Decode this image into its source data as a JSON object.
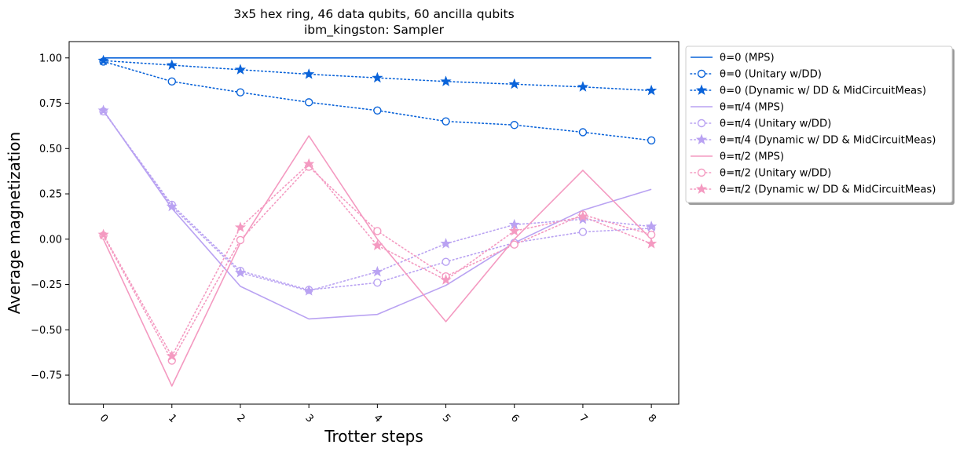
{
  "chart_data": {
    "type": "line",
    "title": [
      "3x5 hex ring, 46 data qubits, 60 ancilla qubits",
      "ibm_kingston: Sampler"
    ],
    "xlabel": "Trotter steps",
    "ylabel": "Average magnetization",
    "x": [
      0,
      1,
      2,
      3,
      4,
      5,
      6,
      7,
      8
    ],
    "x_tick_labels": [
      "0",
      "1",
      "2",
      "3",
      "4",
      "5",
      "6",
      "7",
      "8"
    ],
    "y_ticks": [
      -0.75,
      -0.5,
      -0.25,
      0.0,
      0.25,
      0.5,
      0.75,
      1.0
    ],
    "y_tick_labels": [
      "−0.75",
      "−0.50",
      "−0.25",
      "0.00",
      "0.25",
      "0.50",
      "0.75",
      "1.00"
    ],
    "xlim": [
      -0.5,
      8.4
    ],
    "ylim": [
      -0.91,
      1.09
    ],
    "grid": false,
    "legend_position": "outside-right-top",
    "series": [
      {
        "name": "θ=0 (MPS)",
        "color": "#0a63d9",
        "style": "solid",
        "marker": "none",
        "values": [
          1.0,
          1.0,
          1.0,
          1.0,
          1.0,
          1.0,
          1.0,
          1.0,
          1.0
        ]
      },
      {
        "name": "θ=0 (Unitary w/DD)",
        "color": "#0a63d9",
        "style": "dotted",
        "marker": "circle",
        "values": [
          0.98,
          0.87,
          0.81,
          0.755,
          0.71,
          0.65,
          0.63,
          0.59,
          0.545
        ]
      },
      {
        "name": "θ=0 (Dynamic w/ DD & MidCircuitMeas)",
        "color": "#0a63d9",
        "style": "dotted",
        "marker": "star",
        "values": [
          0.985,
          0.96,
          0.935,
          0.91,
          0.89,
          0.87,
          0.855,
          0.84,
          0.82
        ]
      },
      {
        "name": "θ=π/4 (MPS)",
        "color": "#b9a2f2",
        "style": "solid",
        "marker": "none",
        "values": [
          0.71,
          0.17,
          -0.26,
          -0.44,
          -0.415,
          -0.255,
          -0.02,
          0.16,
          0.275
        ]
      },
      {
        "name": "θ=π/4 (Unitary w/DD)",
        "color": "#b9a2f2",
        "style": "dotted",
        "marker": "circle",
        "values": [
          0.705,
          0.19,
          -0.175,
          -0.28,
          -0.24,
          -0.125,
          -0.02,
          0.04,
          0.06
        ]
      },
      {
        "name": "θ=π/4 (Dynamic w/ DD & MidCircuitMeas)",
        "color": "#b9a2f2",
        "style": "dotted",
        "marker": "star",
        "values": [
          0.71,
          0.18,
          -0.185,
          -0.285,
          -0.18,
          -0.025,
          0.08,
          0.11,
          0.07
        ]
      },
      {
        "name": "θ=π/2 (MPS)",
        "color": "#f49ac1",
        "style": "solid",
        "marker": "none",
        "values": [
          0.0,
          -0.81,
          -0.02,
          0.57,
          0.0,
          -0.455,
          0.0,
          0.38,
          0.0
        ]
      },
      {
        "name": "θ=π/2 (Unitary w/DD)",
        "color": "#f49ac1",
        "style": "dotted",
        "marker": "circle",
        "values": [
          0.02,
          -0.67,
          -0.005,
          0.4,
          0.045,
          -0.205,
          -0.03,
          0.135,
          0.025
        ]
      },
      {
        "name": "θ=π/2 (Dynamic w/ DD & MidCircuitMeas)",
        "color": "#f49ac1",
        "style": "dotted",
        "marker": "star",
        "values": [
          0.025,
          -0.645,
          0.065,
          0.415,
          -0.035,
          -0.225,
          0.045,
          0.125,
          -0.025
        ]
      }
    ]
  }
}
